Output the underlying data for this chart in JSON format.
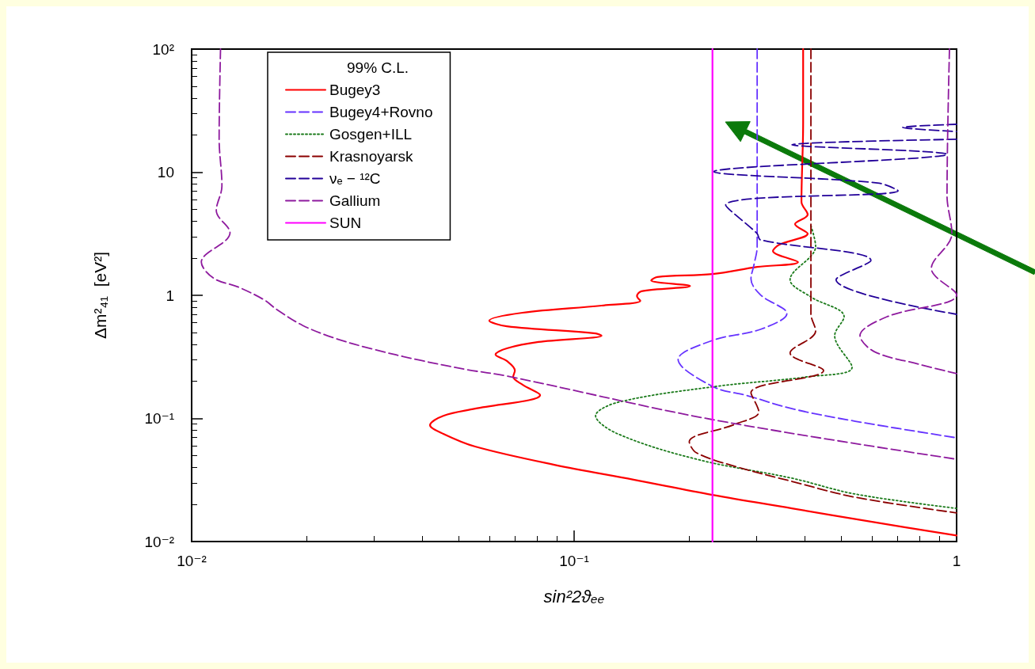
{
  "chart_data": {
    "type": "line",
    "xlabel": "sin²2ϑₑₑ",
    "ylabel": "Δm²₄₁  [eV²]",
    "legend_title": "99% C.L.",
    "legend": "top left",
    "grid": false,
    "log": "xy",
    "xlim": [
      0.01,
      1
    ],
    "ylim": [
      0.01,
      100
    ],
    "xticks": [
      {
        "value": 0.01,
        "label": "10⁻²"
      },
      {
        "value": 0.1,
        "label": "10⁻¹"
      },
      1
    ],
    "yticks": [
      {
        "value": 0.01,
        "label": "10⁻²"
      },
      {
        "value": 0.1,
        "label": "10⁻¹"
      },
      1,
      10,
      {
        "value": 100,
        "label": "10²"
      }
    ],
    "series": [
      {
        "name": "Bugey3",
        "color": "#ff0000",
        "line_style": "solid",
        "x": [
          0.397,
          0.397,
          0.393,
          0.408,
          0.378,
          0.408,
          0.344,
          0.331,
          0.385,
          0.301,
          0.23,
          0.165,
          0.159,
          0.201,
          0.15,
          0.146,
          0.149,
          0.118,
          0.0733,
          0.06,
          0.0667,
          0.1138,
          0.118,
          0.0807,
          0.0667,
          0.0623,
          0.0667,
          0.07,
          0.0693,
          0.0733,
          0.0815,
          0.0551,
          0.0455,
          0.042,
          0.0455,
          0.0551,
          0.0888,
          0.143,
          0.23,
          0.371,
          0.597,
          1
        ],
        "values": [
          100,
          25.2,
          5.74,
          4.53,
          3.79,
          3.17,
          2.58,
          2.29,
          1.86,
          1.7,
          1.49,
          1.41,
          1.32,
          1.19,
          1.08,
          0.986,
          0.902,
          0.825,
          0.722,
          0.622,
          0.561,
          0.491,
          0.47,
          0.418,
          0.371,
          0.33,
          0.293,
          0.245,
          0.218,
          0.188,
          0.155,
          0.12,
          0.105,
          0.0882,
          0.075,
          0.0591,
          0.042,
          0.0318,
          0.0239,
          0.0186,
          0.0145,
          0.0112
        ]
      },
      {
        "name": "Bugey4+Rovno",
        "color": "#6633ff",
        "line_style": "dashed",
        "x": [
          0.301,
          0.301,
          0.301,
          0.295,
          0.29,
          0.307,
          0.36,
          0.307,
          0.23,
          0.187,
          0.23,
          0.284,
          0.371,
          0.543,
          1
        ],
        "values": [
          100,
          6.46,
          2.5,
          1.75,
          1.36,
          1.01,
          0.711,
          0.529,
          0.43,
          0.301,
          0.182,
          0.153,
          0.12,
          0.0949,
          0.0696
        ]
      },
      {
        "name": "Gosgen+ILL",
        "color": "#1a7a1a",
        "line_style": "dotted",
        "x": [
          0.416,
          0.428,
          0.367,
          0.416,
          0.508,
          0.48,
          0.533,
          0.408,
          0.235,
          0.13,
          0.1138,
          0.13,
          0.209,
          0.371,
          0.543,
          1
        ],
        "values": [
          3.68,
          2.5,
          1.34,
          0.97,
          0.67,
          0.47,
          0.26,
          0.218,
          0.182,
          0.135,
          0.105,
          0.075,
          0.0466,
          0.0327,
          0.0243,
          0.0186
        ]
      },
      {
        "name": "Krasnoyarsk",
        "color": "#8b0000",
        "line_style": "dashed",
        "x": [
          0.416,
          0.416,
          0.416,
          0.428,
          0.367,
          0.449,
          0.29,
          0.304,
          0.263,
          0.2,
          0.209,
          0.268,
          0.371,
          0.543,
          1
        ],
        "values": [
          100,
          1.63,
          0.711,
          0.514,
          0.34,
          0.245,
          0.162,
          0.113,
          0.0895,
          0.0646,
          0.0525,
          0.0402,
          0.0308,
          0.0229,
          0.0171
        ]
      },
      {
        "name": "νₑ − ¹²C",
        "color": "#220099",
        "line_style": "dashed",
        "x": [
          1,
          0.723,
          1,
          null,
          1,
          0.371,
          0.944,
          0.232,
          0.621,
          0.703,
          0.249,
          0.301,
          0.307,
          0.597,
          0.484,
          1
        ],
        "values": [
          24.5,
          23.1,
          21.4,
          null,
          18.5,
          16.7,
          14.0,
          10.1,
          8.18,
          7.06,
          5.41,
          3.17,
          2.82,
          1.92,
          1.34,
          0.701
        ]
      },
      {
        "name": "Gallium",
        "color": "#8e1a9e",
        "line_style": "dashed",
        "x": [
          0.0119,
          0.0118,
          0.012,
          0.0116,
          0.0126,
          0.0106,
          0.0114,
          0.0133,
          0.0155,
          0.0167,
          0.0195,
          0.0236,
          0.0297,
          0.0395,
          0.0525,
          0.0667,
          0.23,
          1,
          null,
          0.958,
          0.944,
          0.972,
          0.859,
          1,
          0.658,
          0.559,
          0.609,
          0.796,
          1
        ],
        "values": [
          100,
          18.8,
          7.71,
          4.88,
          3.22,
          1.86,
          1.38,
          1.16,
          0.915,
          0.766,
          0.57,
          0.45,
          0.366,
          0.297,
          0.249,
          0.221,
          0.0978,
          0.0466,
          null,
          100,
          6.46,
          3.17,
          1.65,
          1.01,
          0.67,
          0.47,
          0.349,
          0.276,
          0.231
        ]
      },
      {
        "name": "SUN",
        "color": "#ff00ff",
        "line_style": "solid",
        "x": [
          0.23,
          0.23
        ],
        "values": [
          0.01,
          100
        ]
      }
    ]
  }
}
